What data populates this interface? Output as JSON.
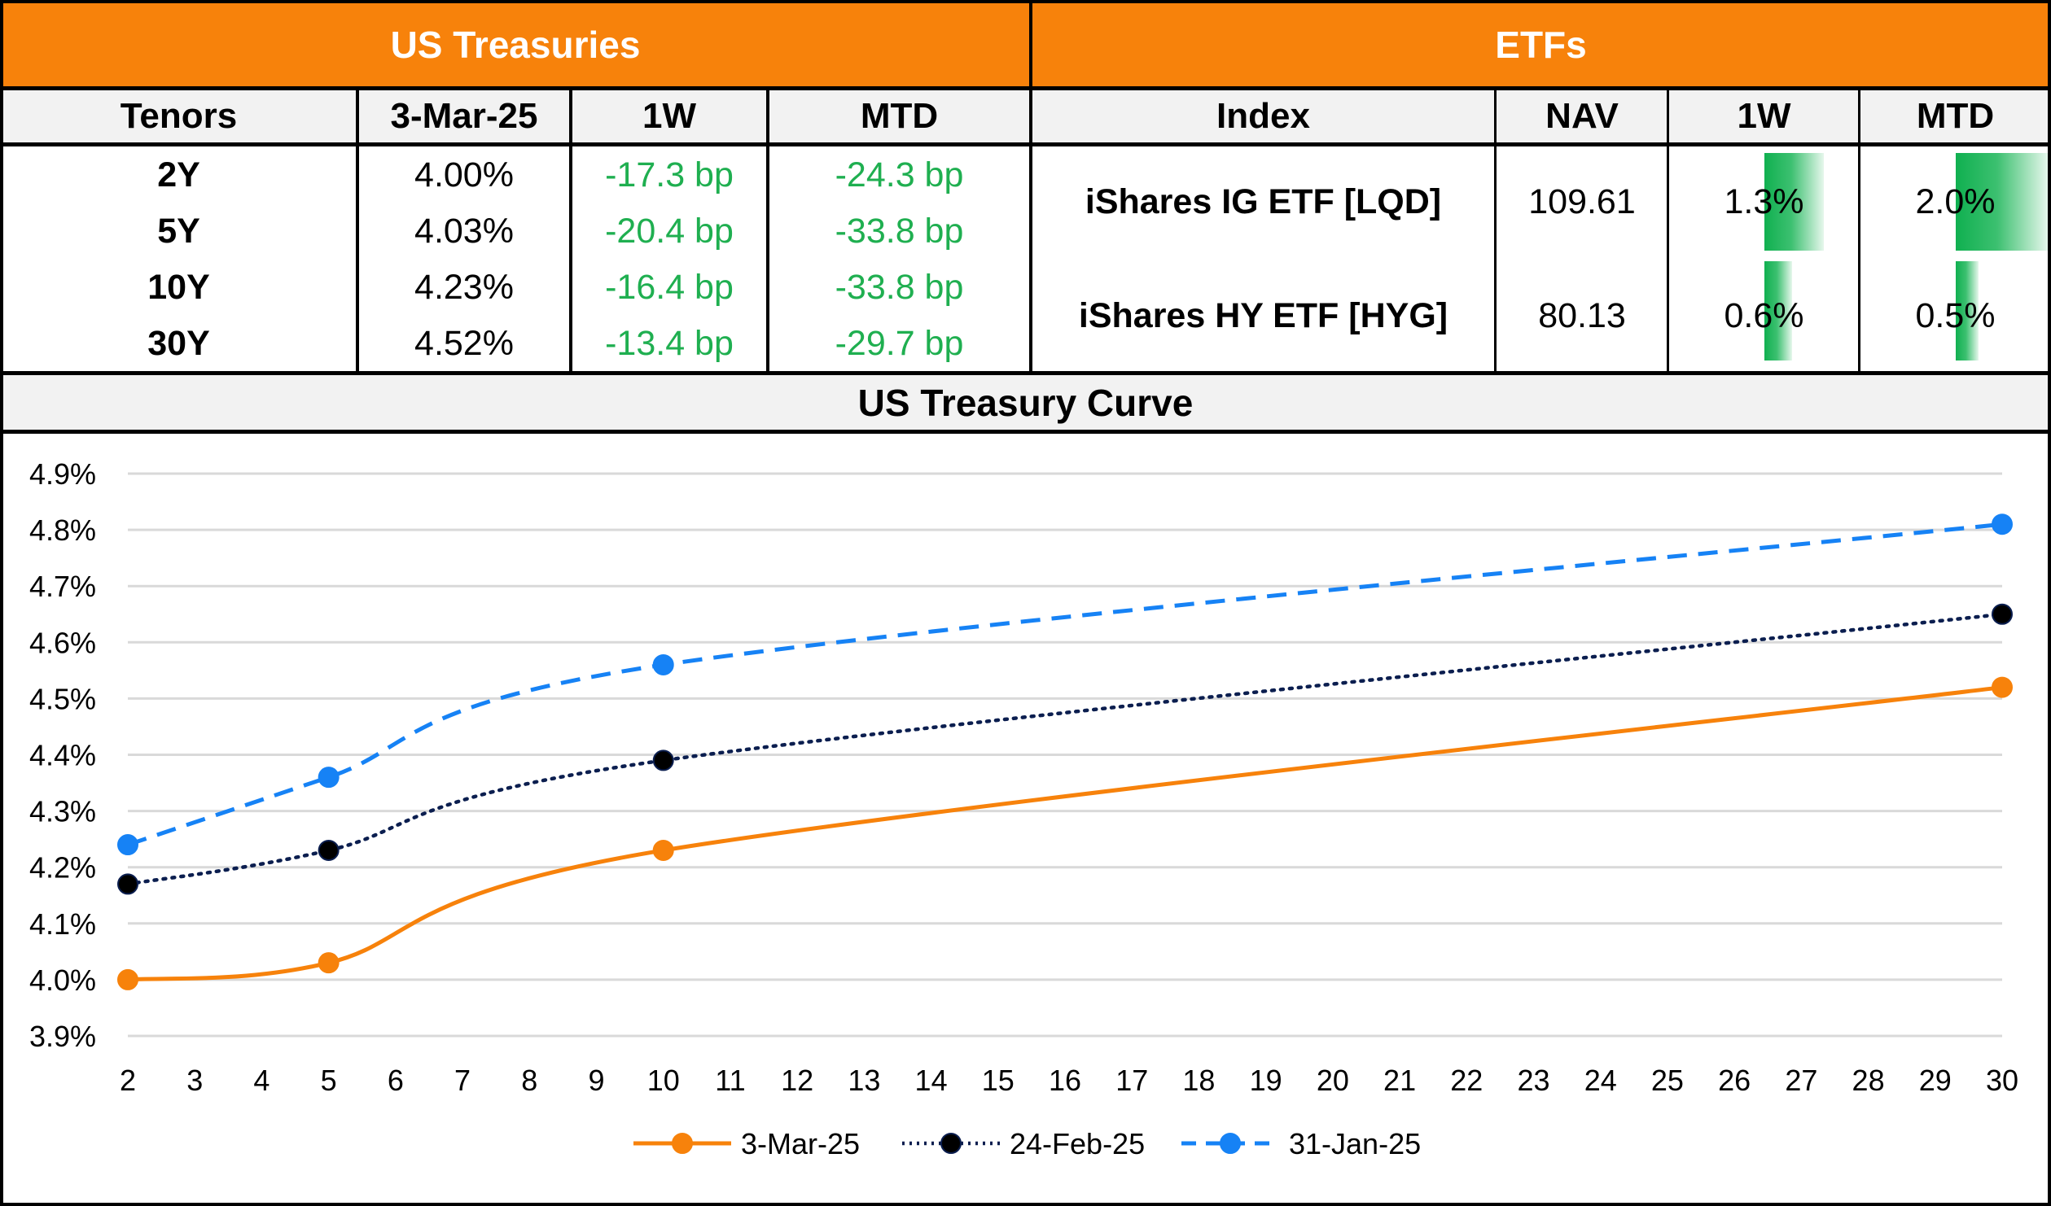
{
  "treasuries": {
    "title": "US Treasuries",
    "headers": [
      "Tenors",
      "3-Mar-25",
      "1W",
      "MTD"
    ],
    "rows": [
      {
        "tenor": "2Y",
        "yield": "4.00%",
        "w1": "-17.3 bp",
        "mtd": "-24.3 bp"
      },
      {
        "tenor": "5Y",
        "yield": "4.03%",
        "w1": "-20.4 bp",
        "mtd": "-33.8 bp"
      },
      {
        "tenor": "10Y",
        "yield": "4.23%",
        "w1": "-16.4 bp",
        "mtd": "-33.8 bp"
      },
      {
        "tenor": "30Y",
        "yield": "4.52%",
        "w1": "-13.4 bp",
        "mtd": "-29.7 bp"
      }
    ]
  },
  "etfs": {
    "title": "ETFs",
    "headers": [
      "Index",
      "NAV",
      "1W",
      "MTD"
    ],
    "bar_max_pct": 2.0,
    "rows": [
      {
        "name": "iShares IG ETF [LQD]",
        "nav": "109.61",
        "w1": "1.3%",
        "w1_value": 1.3,
        "mtd": "2.0%",
        "mtd_value": 2.0
      },
      {
        "name": "iShares HY ETF [HYG]",
        "nav": "80.13",
        "w1": "0.6%",
        "w1_value": 0.6,
        "mtd": "0.5%",
        "mtd_value": 0.5
      }
    ]
  },
  "colors": {
    "header_orange": "#F7820B",
    "positive_green": "#1FAF50",
    "series_3mar": "#F7820B",
    "series_24feb": "#0B1E4F",
    "series_31jan": "#1682F5"
  },
  "chart_data": {
    "type": "line",
    "title": "US Treasury Curve",
    "xlabel": "",
    "ylabel": "",
    "xlim": [
      2,
      30
    ],
    "ylim": [
      3.9,
      4.9
    ],
    "x_ticks": [
      2,
      3,
      4,
      5,
      6,
      7,
      8,
      9,
      10,
      11,
      12,
      13,
      14,
      15,
      16,
      17,
      18,
      19,
      20,
      21,
      22,
      23,
      24,
      25,
      26,
      27,
      28,
      29,
      30
    ],
    "y_ticks": [
      "3.9%",
      "4.0%",
      "4.1%",
      "4.2%",
      "4.3%",
      "4.4%",
      "4.5%",
      "4.6%",
      "4.7%",
      "4.8%",
      "4.9%"
    ],
    "y_tick_values": [
      3.9,
      4.0,
      4.1,
      4.2,
      4.3,
      4.4,
      4.5,
      4.6,
      4.7,
      4.8,
      4.9
    ],
    "grid": true,
    "legend_position": "bottom",
    "x": [
      2,
      5,
      10,
      30
    ],
    "series": [
      {
        "name": "3-Mar-25",
        "values": [
          4.0,
          4.03,
          4.23,
          4.52
        ],
        "style": "solid"
      },
      {
        "name": "24-Feb-25",
        "values": [
          4.17,
          4.23,
          4.39,
          4.65
        ],
        "style": "dotted"
      },
      {
        "name": "31-Jan-25",
        "values": [
          4.24,
          4.36,
          4.56,
          4.81
        ],
        "style": "dashed"
      }
    ]
  }
}
